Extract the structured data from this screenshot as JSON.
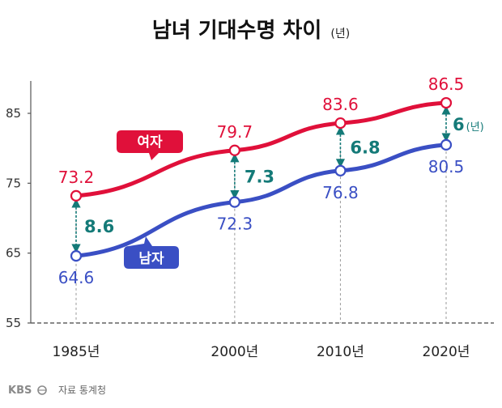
{
  "chart_data": {
    "type": "line",
    "title": "남녀 기대수명 차이",
    "unit": "(년)",
    "x": [
      "1985년",
      "2000년",
      "2010년",
      "2020년"
    ],
    "yticks": [
      85,
      75,
      65,
      55
    ],
    "ylim": [
      55,
      90
    ],
    "series": [
      {
        "name": "여자",
        "color": "#e0103a",
        "values": [
          73.2,
          79.7,
          83.6,
          86.5
        ],
        "labels": [
          "73.2",
          "79.7",
          "83.6",
          "86.5"
        ]
      },
      {
        "name": "남자",
        "color": "#3a4fc4",
        "values": [
          64.6,
          72.3,
          76.8,
          80.5
        ],
        "labels": [
          "64.6",
          "72.3",
          "76.8",
          "80.5"
        ]
      }
    ],
    "gaps": [
      {
        "label": "8.6"
      },
      {
        "label": "7.3"
      },
      {
        "label": "6.8"
      },
      {
        "label": "6",
        "unit": "(년)"
      }
    ]
  },
  "footer": {
    "logo": "KBS",
    "source": "자료 통계청"
  }
}
